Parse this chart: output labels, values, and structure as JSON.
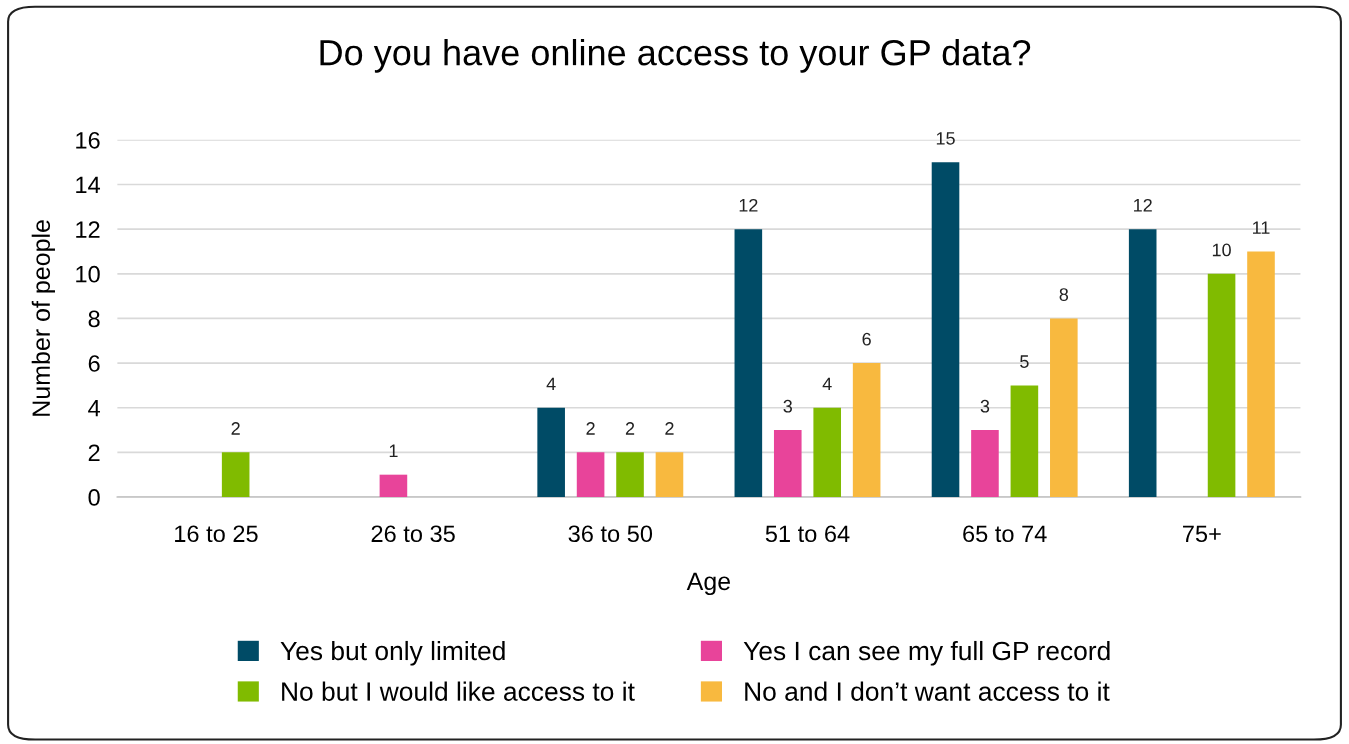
{
  "chart_data": {
    "type": "bar",
    "title": "Do you have online access to your GP data?",
    "xlabel": "Age",
    "ylabel": "Number of people",
    "categories": [
      "16 to 25",
      "26 to 35",
      "36 to 50",
      "51 to 64",
      "65 to 74",
      "75+"
    ],
    "series": [
      {
        "name": "Yes but only limited",
        "color": "#004b66",
        "values": [
          null,
          null,
          4,
          12,
          15,
          12
        ]
      },
      {
        "name": "Yes I can see my full GP record",
        "color": "#e8449a",
        "values": [
          null,
          1,
          2,
          3,
          3,
          null
        ]
      },
      {
        "name": "No but I would like access to it",
        "color": "#80bb00",
        "values": [
          2,
          null,
          2,
          4,
          5,
          10
        ]
      },
      {
        "name": "No and I don’t want access to it",
        "color": "#f8b93f",
        "values": [
          null,
          null,
          2,
          6,
          8,
          11
        ]
      }
    ],
    "ylim": [
      0,
      16
    ],
    "yticks": [
      0,
      2,
      4,
      6,
      8,
      10,
      12,
      14,
      16
    ],
    "grid": "y",
    "legend": "bottom",
    "data_labels": true
  }
}
